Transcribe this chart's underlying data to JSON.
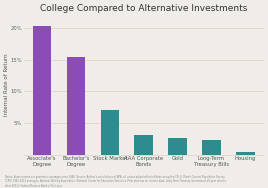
{
  "title": "College Compared to Alternative Investments",
  "categories": [
    "Associate's\nDegree",
    "Bachelor's\nDegree",
    "Stock Market",
    "AAA Corporate\nBonds",
    "Gold",
    "Long-Term\nTreasury Bills",
    "Housing"
  ],
  "values": [
    20.3,
    15.4,
    7.0,
    3.1,
    2.6,
    2.3,
    0.5
  ],
  "bar_colors": [
    "#8B4DB5",
    "#8B4DB5",
    "#2E8B8E",
    "#2E8B8E",
    "#2E8B8E",
    "#2E8B8E",
    "#2E8B8E"
  ],
  "ylabel": "Internal Rate of Return",
  "ylim": [
    0,
    22
  ],
  "yticks": [
    5,
    10,
    15,
    20
  ],
  "ytick_labels": [
    "5%",
    "10%",
    "15%",
    "20%"
  ],
  "background_color": "#f0ede8",
  "grid_color": "#d8d4cc",
  "title_fontsize": 6.5,
  "label_fontsize": 3.8,
  "ylabel_fontsize": 4.0,
  "footnote": "Notes: Asset returns are geometric averages since 1980. Source: Author's calculations of BPA, all values adjusted for inflation using the CPI-U. March Current Population Survey\n(CPS) 1991-2012 averages, National Writing Association, National Center for Education Statistics, Princeton tax on income data, Long Term Treasury (to measure all year returns\nafter 2011), Federal Reserve Bank of St. Louis."
}
